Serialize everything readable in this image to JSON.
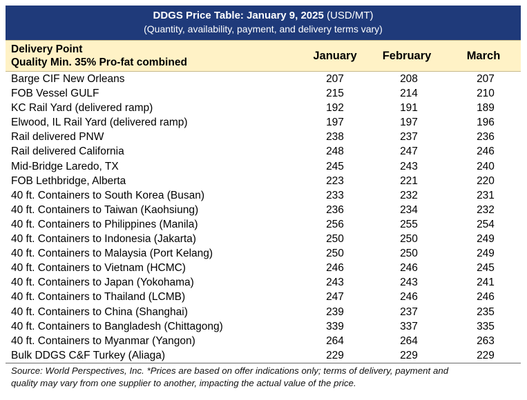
{
  "title": {
    "bold": "DDGS Price Table: January 9, 2025",
    "unit": " (USD/MT)",
    "subtitle": "(Quantity, availability, payment, and delivery terms vary)"
  },
  "header": {
    "line1": "Delivery Point",
    "line2": "Quality Min. 35% Pro-fat combined",
    "columns": [
      "January",
      "February",
      "March"
    ]
  },
  "rows": [
    {
      "location": "Barge CIF New Orleans",
      "values": [
        "207",
        "208",
        "207"
      ]
    },
    {
      "location": "FOB Vessel GULF",
      "values": [
        "215",
        "214",
        "210"
      ]
    },
    {
      "location": "KC Rail Yard (delivered ramp)",
      "values": [
        "192",
        "191",
        "189"
      ]
    },
    {
      "location": "Elwood, IL Rail Yard (delivered ramp)",
      "values": [
        "197",
        "197",
        "196"
      ]
    },
    {
      "location": "Rail delivered PNW",
      "values": [
        "238",
        "237",
        "236"
      ]
    },
    {
      "location": "Rail delivered California",
      "values": [
        "248",
        "247",
        "246"
      ]
    },
    {
      "location": "Mid-Bridge Laredo, TX",
      "values": [
        "245",
        "243",
        "240"
      ]
    },
    {
      "location": "FOB Lethbridge, Alberta",
      "values": [
        "223",
        "221",
        "220"
      ]
    },
    {
      "location": "40 ft. Containers to South Korea (Busan)",
      "values": [
        "233",
        "232",
        "231"
      ]
    },
    {
      "location": "40 ft. Containers to Taiwan (Kaohsiung)",
      "values": [
        "236",
        "234",
        "232"
      ]
    },
    {
      "location": "40 ft. Containers to Philippines (Manila)",
      "values": [
        "256",
        "255",
        "254"
      ]
    },
    {
      "location": "40 ft. Containers to Indonesia (Jakarta)",
      "values": [
        "250",
        "250",
        "249"
      ]
    },
    {
      "location": "40 ft. Containers to Malaysia (Port Kelang)",
      "values": [
        "250",
        "250",
        "249"
      ]
    },
    {
      "location": "40 ft. Containers to Vietnam (HCMC)",
      "values": [
        "246",
        "246",
        "245"
      ]
    },
    {
      "location": "40 ft. Containers to Japan (Yokohama)",
      "values": [
        "243",
        "243",
        "241"
      ]
    },
    {
      "location": "40 ft. Containers to Thailand (LCMB)",
      "values": [
        "247",
        "246",
        "246"
      ]
    },
    {
      "location": "40 ft. Containers to China (Shanghai)",
      "values": [
        "239",
        "237",
        "235"
      ]
    },
    {
      "location": "40 ft. Containers to Bangladesh (Chittagong)",
      "values": [
        "339",
        "337",
        "335"
      ]
    },
    {
      "location": "40 ft. Containers to Myanmar (Yangon)",
      "values": [
        "264",
        "264",
        "263"
      ]
    },
    {
      "location": "Bulk DDGS C&F Turkey (Aliaga)",
      "values": [
        "229",
        "229",
        "229"
      ]
    }
  ],
  "footnote": {
    "line1": "Source: World Perspectives, Inc. *Prices are based on offer indications only; terms of delivery, payment and",
    "line2": "quality may vary from one supplier to another, impacting the actual value of the price."
  },
  "colors": {
    "title_bg": "#1f3a7a",
    "header_bg": "#fff2c6"
  }
}
